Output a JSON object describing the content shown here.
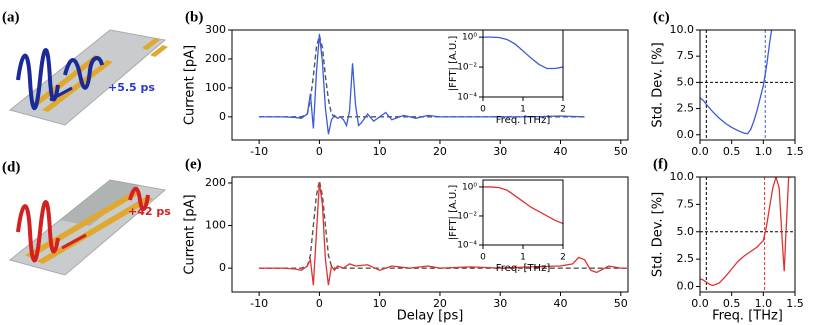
{
  "illustrations": [
    {
      "panel": "(a)",
      "annotation": "+5.5 ps"
    },
    {
      "panel": "(d)",
      "annotation": "+42 ps"
    }
  ],
  "chart_data": [
    {
      "type": "line",
      "panel": "(b)",
      "ylabel": "Current [pA]",
      "xlim": [
        -14.5,
        51.2
      ],
      "xticks": [
        -10,
        0,
        10,
        20,
        30,
        40,
        50
      ],
      "ylim": [
        -80,
        300
      ],
      "yticks": [
        0,
        100,
        200,
        300
      ],
      "x": [
        -10,
        -8,
        -6,
        -4,
        -3,
        -2,
        -1.5,
        -1,
        -0.5,
        0,
        0.5,
        1,
        1.5,
        2,
        2.5,
        3,
        3.5,
        4,
        4.5,
        5,
        5.5,
        6,
        6.5,
        7,
        8,
        9,
        10,
        11,
        12,
        14,
        16,
        18,
        20,
        25,
        30,
        35,
        40,
        44
      ],
      "series": [
        {
          "color": "#555555",
          "linestyle": "dashed",
          "values": [
            0,
            0,
            0,
            0,
            0,
            10,
            60,
            140,
            240,
            280,
            240,
            140,
            60,
            10,
            0,
            0,
            0,
            0,
            0,
            0,
            0,
            0,
            0,
            0,
            0,
            0,
            0,
            0,
            0,
            0,
            0,
            0,
            0,
            0,
            0,
            0,
            0,
            0
          ]
        },
        {
          "color": "#3b5bdb",
          "linestyle": "solid",
          "values": [
            0,
            0,
            0,
            -2,
            -5,
            10,
            80,
            -40,
            150,
            285,
            190,
            30,
            -60,
            -10,
            5,
            -5,
            0,
            -10,
            -30,
            20,
            185,
            40,
            -30,
            -20,
            10,
            -15,
            0,
            15,
            -10,
            5,
            -5,
            5,
            0,
            0,
            0,
            0,
            3,
            0
          ]
        }
      ]
    },
    {
      "type": "line",
      "ylabel": "|FFT| [A.U.]",
      "xlabel": "Freq. [THz]",
      "log_y": true,
      "xlim": [
        0,
        2
      ],
      "xticks": [
        0,
        1,
        2
      ],
      "ylim": [
        0.0001,
        3
      ],
      "yticks": [
        {
          "value": 1,
          "label": "10⁰"
        },
        {
          "value": 0.01,
          "label": "10⁻²"
        },
        {
          "value": 0.0001,
          "label": "10⁻⁴"
        }
      ],
      "x": [
        0,
        0.2,
        0.4,
        0.6,
        0.8,
        1,
        1.2,
        1.4,
        1.6,
        1.8,
        2
      ],
      "series": [
        {
          "color": "#3b5bdb",
          "linestyle": "solid",
          "values": [
            1,
            1,
            0.95,
            0.7,
            0.35,
            0.12,
            0.04,
            0.015,
            0.008,
            0.008,
            0.01
          ]
        }
      ]
    },
    {
      "type": "line",
      "panel": "(c)",
      "ylabel": "Std. Dev. [%]",
      "xlim": [
        0,
        1.5
      ],
      "xticks": [
        {
          "value": 0,
          "label": "0.0"
        },
        0.5,
        {
          "value": 1,
          "label": "1.0"
        },
        1.5
      ],
      "ylim": [
        -0.5,
        10
      ],
      "yticks": [
        {
          "value": 0,
          "label": "0.0"
        },
        2.5,
        {
          "value": 5,
          "label": "5.0"
        },
        7.5,
        {
          "value": 10,
          "label": "10.0"
        }
      ],
      "reference_lines": [
        {
          "orientation": "horizontal",
          "value": 5,
          "color": "#000000"
        },
        {
          "orientation": "vertical",
          "value": 0.1,
          "color": "#000000"
        },
        {
          "orientation": "vertical",
          "value": 1.03,
          "color": "#3b5bdb"
        }
      ],
      "x": [
        0,
        0.05,
        0.1,
        0.2,
        0.3,
        0.4,
        0.5,
        0.6,
        0.7,
        0.75,
        0.8,
        0.85,
        0.9,
        0.95,
        1.0,
        1.05,
        1.1,
        1.13
      ],
      "series": [
        {
          "color": "#3b5bdb",
          "linestyle": "solid",
          "values": [
            3.5,
            3.3,
            2.9,
            2.2,
            1.6,
            1.1,
            0.7,
            0.4,
            0.15,
            0.1,
            0.5,
            1.3,
            2.3,
            3.5,
            4.7,
            6.5,
            8.8,
            10
          ]
        }
      ]
    },
    {
      "type": "line",
      "panel": "(e)",
      "ylabel": "Current [pA]",
      "xlabel": "Delay [ps]",
      "xlim": [
        -14.5,
        51.2
      ],
      "xticks": [
        -10,
        0,
        10,
        20,
        30,
        40,
        50
      ],
      "ylim": [
        -56,
        214
      ],
      "yticks": [
        0,
        100,
        200
      ],
      "x": [
        -10,
        -8,
        -6,
        -4,
        -3,
        -2,
        -1.5,
        -1,
        -0.5,
        0,
        0.5,
        1,
        1.5,
        2,
        2.5,
        3,
        4,
        5,
        6,
        8,
        10,
        12,
        15,
        18,
        20,
        25,
        30,
        35,
        40,
        42,
        43,
        44,
        45,
        46,
        48,
        50,
        51
      ],
      "series": [
        {
          "color": "#555555",
          "linestyle": "dashed",
          "values": [
            0,
            0,
            0,
            0,
            0,
            5,
            30,
            100,
            170,
            205,
            170,
            100,
            30,
            5,
            0,
            0,
            0,
            0,
            0,
            0,
            0,
            0,
            0,
            0,
            0,
            0,
            0,
            0,
            0,
            0,
            0,
            0,
            0,
            0,
            0,
            0,
            0
          ]
        },
        {
          "color": "#e03131",
          "linestyle": "solid",
          "values": [
            0,
            0,
            0,
            -2,
            -5,
            5,
            20,
            -40,
            80,
            200,
            150,
            20,
            -40,
            5,
            -5,
            5,
            0,
            10,
            5,
            8,
            -5,
            5,
            0,
            5,
            0,
            3,
            0,
            3,
            5,
            10,
            25,
            20,
            -5,
            -10,
            5,
            0,
            0
          ]
        }
      ]
    },
    {
      "type": "line",
      "ylabel": "|FFT| [A.U.]",
      "xlabel": "Freq. [THz]",
      "log_y": true,
      "xlim": [
        0,
        2
      ],
      "xticks": [
        0,
        1,
        2
      ],
      "ylim": [
        0.0001,
        3
      ],
      "yticks": [
        {
          "value": 1,
          "label": "10⁰"
        },
        {
          "value": 0.01,
          "label": "10⁻²"
        },
        {
          "value": 0.0001,
          "label": "10⁻⁴"
        }
      ],
      "x": [
        0,
        0.2,
        0.4,
        0.6,
        0.8,
        1,
        1.2,
        1.4,
        1.6,
        1.8,
        2
      ],
      "series": [
        {
          "color": "#e03131",
          "linestyle": "solid",
          "values": [
            1,
            1,
            0.9,
            0.6,
            0.25,
            0.1,
            0.04,
            0.02,
            0.01,
            0.005,
            0.003
          ]
        }
      ]
    },
    {
      "type": "line",
      "panel": "(f)",
      "ylabel": "Std. Dev. [%]",
      "xlabel": "Freq. [THz]",
      "xlim": [
        0,
        1.5
      ],
      "xticks": [
        {
          "value": 0,
          "label": "0.0"
        },
        0.5,
        {
          "value": 1,
          "label": "1.0"
        },
        1.5
      ],
      "ylim": [
        -0.5,
        10
      ],
      "yticks": [
        {
          "value": 0,
          "label": "0.0"
        },
        2.5,
        {
          "value": 5,
          "label": "5.0"
        },
        7.5,
        {
          "value": 10,
          "label": "10.0"
        }
      ],
      "reference_lines": [
        {
          "orientation": "horizontal",
          "value": 5,
          "color": "#000000"
        },
        {
          "orientation": "vertical",
          "value": 0.1,
          "color": "#000000"
        },
        {
          "orientation": "vertical",
          "value": 1.02,
          "color": "#e03131"
        }
      ],
      "x": [
        0,
        0.05,
        0.1,
        0.15,
        0.2,
        0.3,
        0.4,
        0.5,
        0.6,
        0.7,
        0.8,
        0.9,
        1.0,
        1.05,
        1.1,
        1.15,
        1.2,
        1.25,
        1.3,
        1.33,
        1.35,
        1.4,
        1.45
      ],
      "series": [
        {
          "color": "#e03131",
          "linestyle": "solid",
          "values": [
            0.7,
            0.6,
            0.4,
            0.2,
            0.1,
            0.3,
            0.9,
            1.6,
            2.3,
            2.8,
            3.2,
            3.6,
            4.2,
            5.5,
            7.3,
            9.0,
            10,
            9,
            4,
            1.4,
            4,
            10,
            10
          ]
        }
      ]
    }
  ]
}
